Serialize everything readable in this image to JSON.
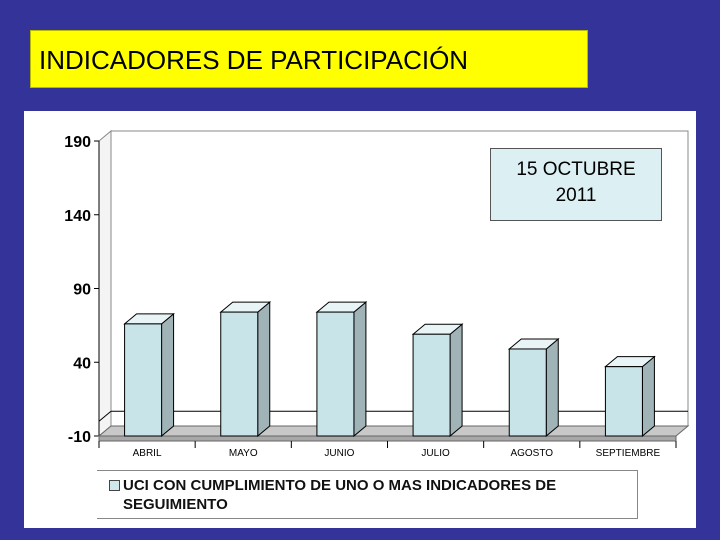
{
  "title": "INDICADORES DE PARTICIPACIÓN",
  "annotation": {
    "line1": "15 OCTUBRE",
    "line2": "2011"
  },
  "legend": {
    "label": "UCI CON CUMPLIMIENTO DE UNO O MAS INDICADORES DE SEGUIMIENTO"
  },
  "colors": {
    "background": "#333399",
    "title_bg": "#ffff00",
    "bar_front": "#c8e4e8",
    "bar_top": "#e8f4f6",
    "bar_side": "#a0b4b8",
    "floor": "#c8c8c8"
  },
  "chart_data": {
    "type": "bar",
    "categories": [
      "ABRIL",
      "MAYO",
      "JUNIO",
      "JULIO",
      "AGOSTO",
      "SEPTIEMBRE"
    ],
    "series": [
      {
        "name": "UCI CON CUMPLIMIENTO DE UNO O MAS INDICADORES DE SEGUIMIENTO",
        "values": [
          66,
          74,
          74,
          59,
          49,
          37
        ]
      }
    ],
    "yticks": [
      190,
      140,
      90,
      40,
      -10
    ],
    "ylim": [
      -10,
      190
    ],
    "grid": false,
    "three_d": true
  }
}
